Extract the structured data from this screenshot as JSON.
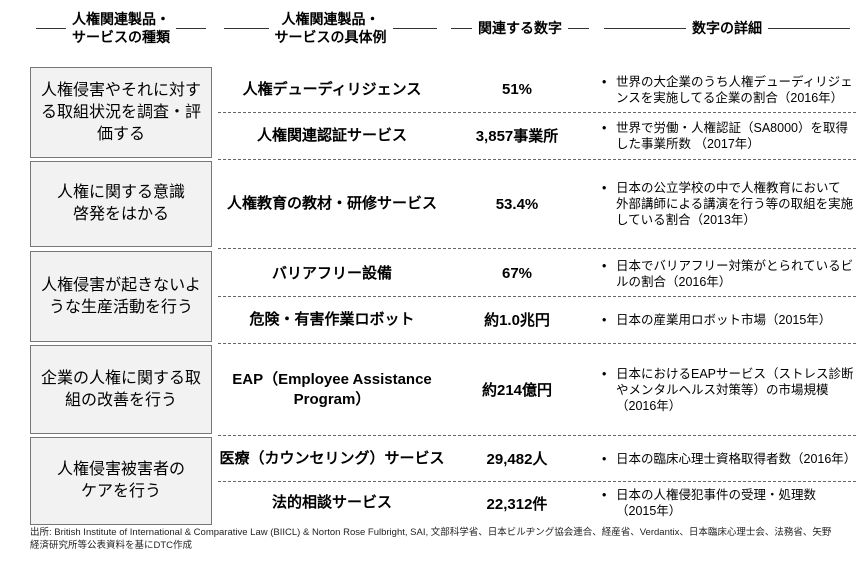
{
  "headers": [
    "人権関連製品・\nサービスの種類",
    "人権関連製品・\nサービスの具体例",
    "関連する数字",
    "数字の詳細"
  ],
  "groups": [
    {
      "category": "人権侵害やそれに対する取組状況を調査・評価する",
      "rows": [
        {
          "example": "人権デューディリジェンス",
          "number": "51%",
          "detail": "世界の大企業のうち人権デューディリジェンスを実施してる企業の割合（2016年）"
        },
        {
          "example": "人権関連認証サービス",
          "number": "3,857事業所",
          "detail": "世界で労働・人権認証（SA8000）を取得した事業所数 （2017年）"
        }
      ]
    },
    {
      "category": "人権に関する意識啓発をはかる",
      "rows": [
        {
          "example": "人権教育の教材・研修サービス",
          "number": "53.4%",
          "detail": "日本の公立学校の中で人権教育において 外部講師による講演を行う等の取組を実施 している割合（2013年）"
        }
      ]
    },
    {
      "category": "人権侵害が起きないような生産活動を行う",
      "rows": [
        {
          "example": "バリアフリー設備",
          "number": "67%",
          "detail": "日本でバリアフリー対策がとられているビルの割合（2016年）"
        },
        {
          "example": "危険・有害作業ロボット",
          "number": "約1.0兆円",
          "detail": "日本の産業用ロボット市場（2015年）"
        }
      ]
    },
    {
      "category": "企業の人権に関する取組の改善を行う",
      "rows": [
        {
          "example": "EAP（Employee Assistance Program）",
          "number": "約214億円",
          "detail": "日本におけるEAPサービス（ストレス診断やメンタルヘルス対策等）の市場規模（2016年）"
        }
      ]
    },
    {
      "category": "人権侵害被害者のケアを行う",
      "rows": [
        {
          "example": "医療（カウンセリング）サービス",
          "number": "29,482人",
          "detail": "日本の臨床心理士資格取得者数（2016年）"
        },
        {
          "example": "法的相談サービス",
          "number": "22,312件",
          "detail": "日本の人権侵犯事件の受理・処理数（2015年）"
        }
      ]
    }
  ],
  "source": "出所: British Institute of International & Comparative Law (BIICL) & Norton Rose Fulbright, SAI, 文部科学省、日本ビルヂング協会連合、経産省、Verdantix、日本臨床心理士会、法務省、矢野経済研究所等公表資料を基にDTC作成"
}
